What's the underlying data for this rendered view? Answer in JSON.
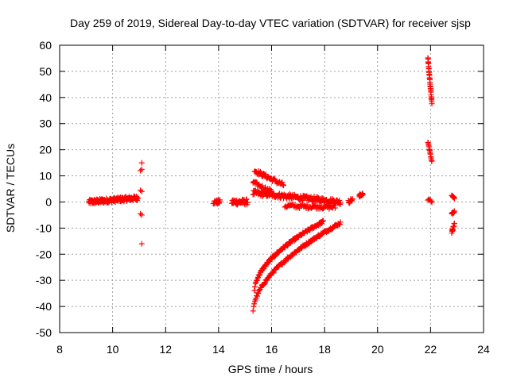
{
  "chart_data": {
    "type": "scatter",
    "title": "Day 259 of 2019, Sidereal Day-to-day VTEC variation (SDTVAR) for receiver sjsp",
    "xlabel": "GPS time / hours",
    "ylabel": "SDTVAR / TECUs",
    "xlim": [
      8,
      24
    ],
    "ylim": [
      -50,
      60
    ],
    "x_ticks": [
      8,
      10,
      12,
      14,
      16,
      18,
      20,
      22,
      24
    ],
    "y_ticks": [
      -50,
      -40,
      -30,
      -20,
      -10,
      0,
      10,
      20,
      30,
      40,
      50,
      60
    ],
    "x_tick_labels": [
      "8",
      "10",
      "12",
      "14",
      "16",
      "18",
      "20",
      "22",
      "24"
    ],
    "y_tick_labels": [
      "-50",
      "-40",
      "-30",
      "-20",
      "-10",
      "0",
      "10",
      "20",
      "30",
      "40",
      "50",
      "60"
    ],
    "grid": true,
    "marker": "+",
    "marker_color": "#ff0000",
    "series": [
      {
        "name": "cluster-9-11h",
        "x_range": [
          9.1,
          10.95
        ],
        "y_start": 0.0,
        "y_end": 1.5,
        "jitter": 0.9,
        "count": 160
      },
      {
        "name": "isolated-11h",
        "points": [
          [
            11.1,
            15.0
          ],
          [
            11.05,
            12.0
          ],
          [
            11.1,
            12.5
          ],
          [
            11.05,
            4.5
          ],
          [
            11.1,
            4.0
          ],
          [
            11.05,
            -4.5
          ],
          [
            11.1,
            -5.0
          ],
          [
            11.1,
            -16.0
          ]
        ]
      },
      {
        "name": "cluster-13.8-14h",
        "x_range": [
          13.8,
          14.05
        ],
        "y_start": 0.0,
        "y_end": 0.0,
        "jitter": 0.8,
        "count": 20
      },
      {
        "name": "cluster-14.5-15h",
        "x_range": [
          14.5,
          15.1
        ],
        "y_start": 0.0,
        "y_end": 0.0,
        "jitter": 1.1,
        "count": 40
      },
      {
        "name": "plateau-15.3-18.5h",
        "x_range": [
          15.3,
          18.6
        ],
        "y_start": 3.5,
        "y_end": 0.0,
        "jitter": 1.0,
        "count": 170
      },
      {
        "name": "descending-15.4-16.4h",
        "x_range": [
          15.35,
          16.45
        ],
        "y_start": 12.0,
        "y_end": 6.5,
        "jitter": 0.8,
        "count": 45
      },
      {
        "name": "descending-15.3-16h",
        "x_range": [
          15.3,
          16.0
        ],
        "y_start": 7.5,
        "y_end": 4.0,
        "jitter": 0.7,
        "count": 25
      },
      {
        "name": "dip-16.5-18.4h",
        "x_range": [
          16.5,
          18.4
        ],
        "y_start": -1.5,
        "y_end": -2.0,
        "jitter": 0.8,
        "count": 60
      },
      {
        "name": "rising-arc-upper",
        "x_range": [
          15.35,
          17.95
        ],
        "y_start": -34.0,
        "y_end": -7.5,
        "curve": 0.55,
        "jitter": 0.5,
        "count": 130
      },
      {
        "name": "rising-arc-lower",
        "x_range": [
          15.3,
          18.6
        ],
        "y_start": -42.0,
        "y_end": -8.0,
        "curve": 0.55,
        "jitter": 0.5,
        "count": 150
      },
      {
        "name": "cluster-18.9-19h",
        "x_range": [
          18.9,
          19.05
        ],
        "y_start": 0.0,
        "y_end": 1.0,
        "jitter": 0.7,
        "count": 10
      },
      {
        "name": "cluster-19.35h",
        "x_range": [
          19.3,
          19.45
        ],
        "y_start": 2.0,
        "y_end": 3.5,
        "jitter": 0.8,
        "count": 10
      },
      {
        "name": "descending-21.9-22.05h-high",
        "x_range": [
          21.9,
          22.05
        ],
        "y_start": 55.0,
        "y_end": 37.5,
        "jitter": 0.4,
        "count": 30
      },
      {
        "name": "descending-21.9-22.05h-mid",
        "x_range": [
          21.9,
          22.05
        ],
        "y_start": 23.0,
        "y_end": 15.5,
        "jitter": 0.4,
        "count": 16
      },
      {
        "name": "cluster-22h-zero",
        "x_range": [
          21.9,
          22.05
        ],
        "y_start": 1.0,
        "y_end": 0.0,
        "jitter": 0.4,
        "count": 6
      },
      {
        "name": "cluster-22.85h-upper",
        "x_range": [
          22.8,
          22.9
        ],
        "y_start": 3.0,
        "y_end": 1.5,
        "jitter": 0.5,
        "count": 8
      },
      {
        "name": "cluster-22.85h-mid",
        "x_range": [
          22.8,
          22.9
        ],
        "y_start": -4.5,
        "y_end": -3.5,
        "jitter": 0.5,
        "count": 8
      },
      {
        "name": "cluster-22.85h-lower",
        "x_range": [
          22.8,
          22.9
        ],
        "y_start": -11.5,
        "y_end": -8.5,
        "jitter": 0.5,
        "count": 12
      }
    ]
  }
}
